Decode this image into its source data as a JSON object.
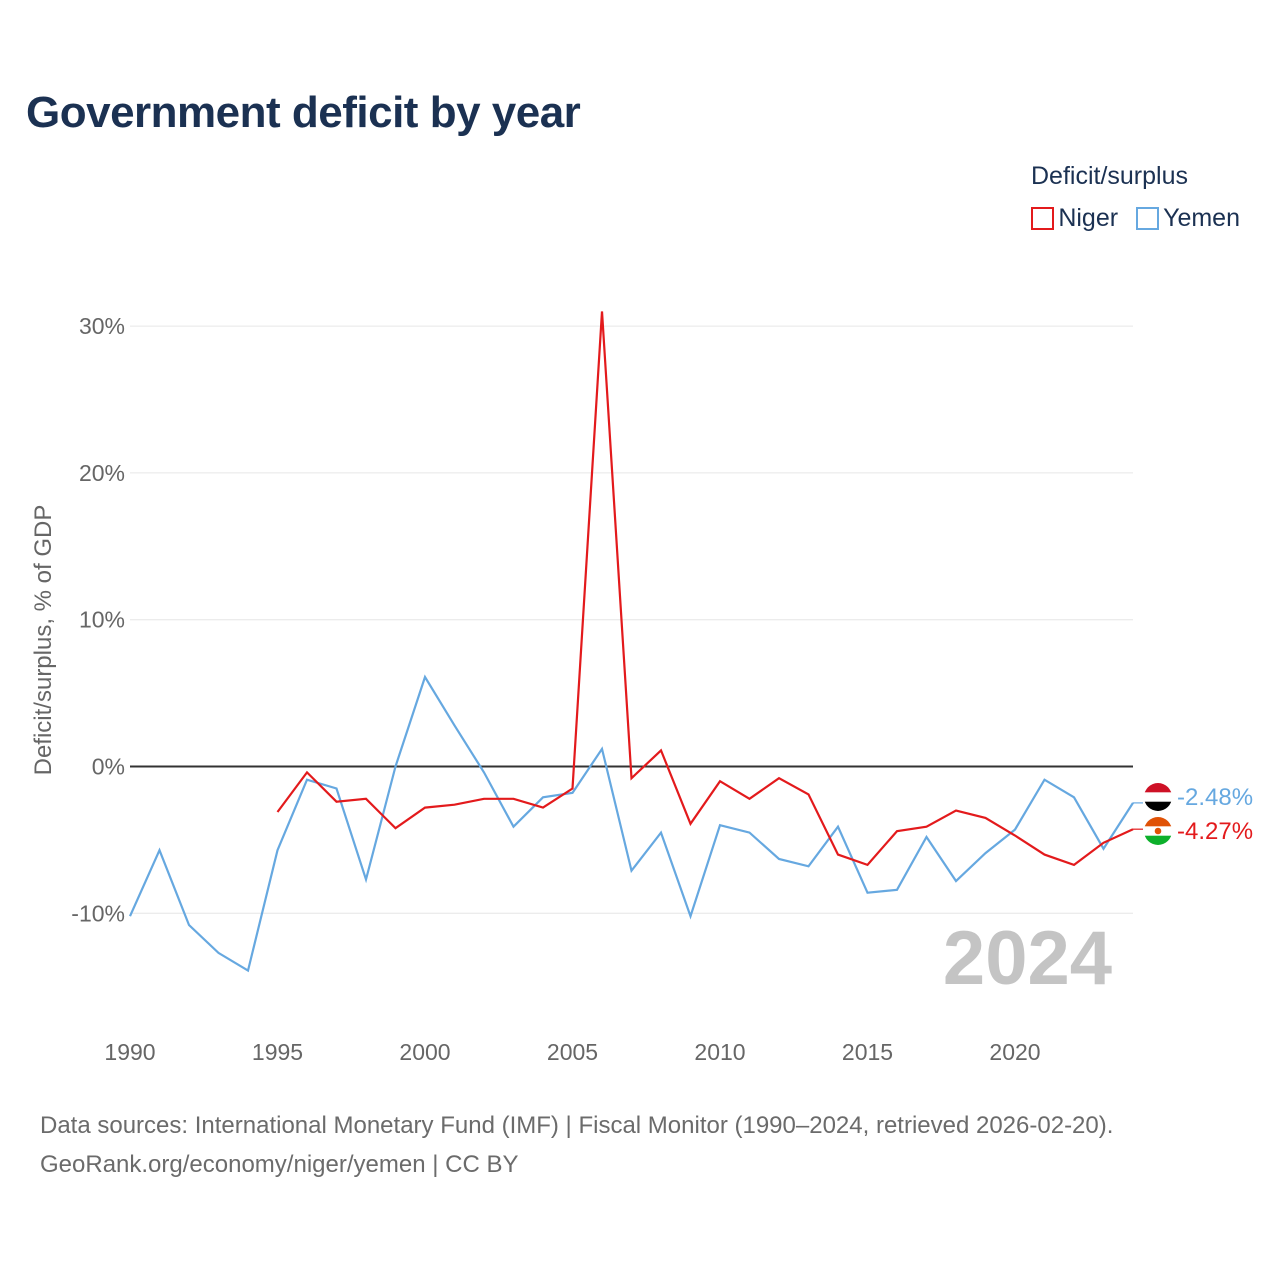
{
  "title": "Government deficit by year",
  "legend": {
    "title": "Deficit/surplus",
    "items": [
      {
        "name": "Niger",
        "color": "#e31a1c"
      },
      {
        "name": "Yemen",
        "color": "#66a8e0"
      }
    ]
  },
  "year_watermark": "2024",
  "sources": {
    "line1": "Data sources: International Monetary Fund (IMF) | Fiscal Monitor (1990–2024, retrieved 2026-02-20).",
    "line2": "GeoRank.org/economy/niger/yemen | CC BY"
  },
  "chart_data": {
    "type": "line",
    "title": "Government deficit by year",
    "xlabel": "",
    "ylabel": "Deficit/surplus, % of GDP",
    "xlim": [
      1990,
      2024
    ],
    "ylim": [
      -17,
      31
    ],
    "x_ticks": [
      1990,
      1995,
      2000,
      2005,
      2010,
      2015,
      2020
    ],
    "x_tick_labels": [
      "1990",
      "1995",
      "2000",
      "2005",
      "2010",
      "2015",
      "2020"
    ],
    "y_ticks": [
      -10,
      0,
      10,
      20,
      30
    ],
    "y_tick_labels": [
      "-10%",
      "0%",
      "10%",
      "20%",
      "30%"
    ],
    "grid": true,
    "legend_position": "top-right",
    "series": [
      {
        "name": "Niger",
        "color": "#e31a1c",
        "x": [
          1995,
          1996,
          1997,
          1998,
          1999,
          2000,
          2001,
          2002,
          2003,
          2004,
          2005,
          2006,
          2007,
          2008,
          2009,
          2010,
          2011,
          2012,
          2013,
          2014,
          2015,
          2016,
          2017,
          2018,
          2019,
          2020,
          2021,
          2022,
          2023,
          2024
        ],
        "values": [
          -3.1,
          -0.4,
          -2.4,
          -2.2,
          -4.2,
          -2.8,
          -2.6,
          -2.2,
          -2.2,
          -2.8,
          -1.5,
          31.0,
          -0.8,
          1.1,
          -3.9,
          -1.0,
          -2.2,
          -0.8,
          -1.9,
          -6.0,
          -6.7,
          -4.4,
          -4.1,
          -3.0,
          -3.5,
          -4.7,
          -6.0,
          -6.7,
          -5.2,
          -4.27
        ],
        "end_label": "-4.27%"
      },
      {
        "name": "Yemen",
        "color": "#66a8e0",
        "x": [
          1990,
          1991,
          1992,
          1993,
          1994,
          1995,
          1996,
          1997,
          1998,
          1999,
          2000,
          2001,
          2002,
          2003,
          2004,
          2005,
          2006,
          2007,
          2008,
          2009,
          2010,
          2011,
          2012,
          2013,
          2014,
          2015,
          2016,
          2017,
          2018,
          2019,
          2020,
          2021,
          2022,
          2023,
          2024
        ],
        "values": [
          -10.2,
          -5.7,
          -10.8,
          -12.7,
          -13.9,
          -5.7,
          -0.9,
          -1.5,
          -7.7,
          0.0,
          6.1,
          2.8,
          -0.4,
          -4.1,
          -2.1,
          -1.8,
          1.2,
          -7.1,
          -4.5,
          -10.2,
          -4.0,
          -4.5,
          -6.3,
          -6.8,
          -4.1,
          -8.6,
          -8.4,
          -4.8,
          -7.8,
          -5.9,
          -4.3,
          -0.9,
          -2.1,
          -5.6,
          -2.48
        ],
        "end_label": "-2.48%"
      }
    ]
  }
}
